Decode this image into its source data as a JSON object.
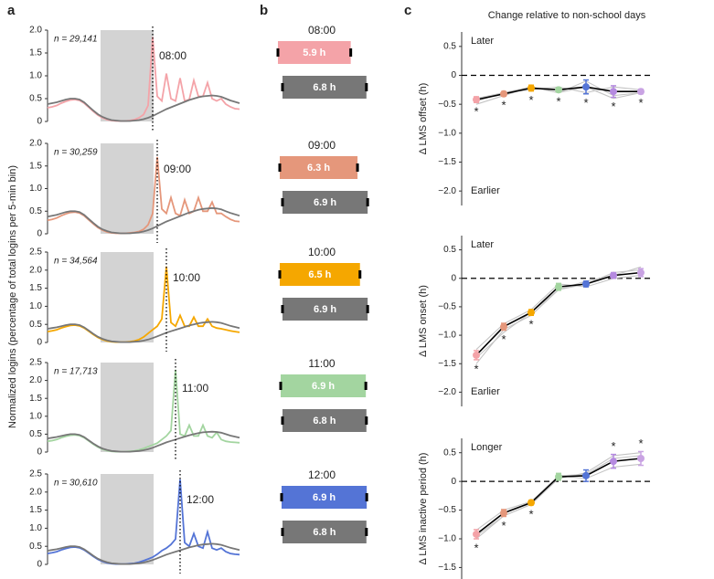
{
  "labels": {
    "a": "a",
    "b": "b",
    "c": "c"
  },
  "a_ylabel": "Normalized logins (percentage of total logins per 5-min bin)",
  "c_title": "Change relative to non-school days",
  "chart_data": [
    {
      "type": "line",
      "title": "08:00",
      "annotation": "n = 29,141",
      "ylim": [
        0,
        2
      ],
      "yticks": [
        0,
        0.5,
        {
          "value": 1,
          "label": "1.0"
        },
        1.5,
        {
          "value": 2,
          "label": "2.0"
        }
      ],
      "series": [
        {
          "color": "#f4a3a8",
          "values": [
            0.3,
            0.32,
            0.35,
            0.4,
            0.44,
            0.47,
            0.48,
            0.46,
            0.4,
            0.31,
            0.22,
            0.14,
            0.08,
            0.04,
            0.02,
            0.01,
            0.01,
            0.01,
            0.02,
            0.04,
            0.08,
            0.15,
            0.35,
            1.85,
            0.55,
            0.45,
            1.05,
            0.5,
            0.45,
            0.95,
            0.45,
            0.48,
            0.9,
            0.55,
            0.55,
            0.85,
            0.5,
            0.45,
            0.5,
            0.38,
            0.32,
            0.28,
            0.27
          ]
        },
        {
          "color": "#777777",
          "values": [
            0.38,
            0.4,
            0.42,
            0.45,
            0.48,
            0.5,
            0.5,
            0.48,
            0.42,
            0.33,
            0.24,
            0.16,
            0.1,
            0.06,
            0.03,
            0.02,
            0.01,
            0.01,
            0.01,
            0.02,
            0.03,
            0.05,
            0.08,
            0.12,
            0.17,
            0.22,
            0.27,
            0.31,
            0.35,
            0.39,
            0.43,
            0.47,
            0.5,
            0.53,
            0.55,
            0.56,
            0.57,
            0.56,
            0.54,
            0.5,
            0.46,
            0.43,
            0.4
          ]
        }
      ]
    },
    {
      "type": "line",
      "title": "09:00",
      "annotation": "n = 30,259",
      "ylim": [
        0,
        2
      ],
      "yticks": [
        0,
        0.5,
        {
          "value": 1,
          "label": "1.0"
        },
        1.5,
        {
          "value": 2,
          "label": "2.0"
        }
      ],
      "series": [
        {
          "color": "#e5977b",
          "values": [
            0.3,
            0.32,
            0.35,
            0.4,
            0.44,
            0.47,
            0.48,
            0.46,
            0.4,
            0.31,
            0.22,
            0.14,
            0.08,
            0.04,
            0.02,
            0.01,
            0.01,
            0.01,
            0.02,
            0.03,
            0.05,
            0.1,
            0.2,
            0.45,
            1.7,
            0.55,
            0.45,
            0.8,
            0.45,
            0.4,
            0.75,
            0.45,
            0.5,
            0.8,
            0.5,
            0.5,
            0.7,
            0.45,
            0.45,
            0.38,
            0.32,
            0.28,
            0.27
          ]
        },
        {
          "color": "#777777",
          "values": [
            0.38,
            0.4,
            0.42,
            0.45,
            0.48,
            0.5,
            0.5,
            0.48,
            0.42,
            0.33,
            0.24,
            0.16,
            0.1,
            0.06,
            0.03,
            0.02,
            0.01,
            0.01,
            0.01,
            0.02,
            0.03,
            0.05,
            0.08,
            0.12,
            0.17,
            0.22,
            0.27,
            0.31,
            0.35,
            0.39,
            0.43,
            0.47,
            0.5,
            0.53,
            0.55,
            0.56,
            0.57,
            0.56,
            0.54,
            0.5,
            0.46,
            0.43,
            0.4
          ]
        }
      ]
    },
    {
      "type": "line",
      "title": "10:00",
      "annotation": "n = 34,564",
      "ylim": [
        0,
        2.5
      ],
      "yticks": [
        0,
        0.5,
        {
          "value": 1,
          "label": "1.0"
        },
        1.5,
        {
          "value": 2,
          "label": "2.0"
        },
        2.5
      ],
      "series": [
        {
          "color": "#f5a700",
          "values": [
            0.3,
            0.32,
            0.35,
            0.4,
            0.44,
            0.47,
            0.48,
            0.46,
            0.4,
            0.31,
            0.22,
            0.14,
            0.08,
            0.04,
            0.02,
            0.01,
            0.01,
            0.01,
            0.02,
            0.04,
            0.08,
            0.15,
            0.25,
            0.35,
            0.45,
            0.65,
            2.1,
            0.55,
            0.45,
            0.75,
            0.45,
            0.45,
            0.7,
            0.45,
            0.45,
            0.65,
            0.45,
            0.4,
            0.38,
            0.35,
            0.32,
            0.3,
            0.28
          ]
        },
        {
          "color": "#777777",
          "values": [
            0.38,
            0.4,
            0.42,
            0.45,
            0.48,
            0.5,
            0.5,
            0.48,
            0.42,
            0.33,
            0.24,
            0.16,
            0.1,
            0.06,
            0.03,
            0.02,
            0.01,
            0.01,
            0.01,
            0.02,
            0.03,
            0.05,
            0.08,
            0.12,
            0.17,
            0.22,
            0.27,
            0.31,
            0.35,
            0.39,
            0.43,
            0.47,
            0.5,
            0.53,
            0.55,
            0.56,
            0.57,
            0.56,
            0.54,
            0.5,
            0.46,
            0.43,
            0.4
          ]
        }
      ]
    },
    {
      "type": "line",
      "title": "11:00",
      "annotation": "n = 17,713",
      "ylim": [
        0,
        2.5
      ],
      "yticks": [
        0,
        0.5,
        {
          "value": 1,
          "label": "1.0"
        },
        1.5,
        {
          "value": 2,
          "label": "2.0"
        },
        2.5
      ],
      "series": [
        {
          "color": "#a3d5a0",
          "values": [
            0.3,
            0.32,
            0.35,
            0.4,
            0.44,
            0.47,
            0.48,
            0.46,
            0.4,
            0.31,
            0.22,
            0.14,
            0.08,
            0.04,
            0.02,
            0.01,
            0.01,
            0.01,
            0.02,
            0.03,
            0.06,
            0.1,
            0.15,
            0.2,
            0.25,
            0.35,
            0.45,
            0.6,
            2.3,
            0.5,
            0.45,
            0.75,
            0.45,
            0.45,
            0.75,
            0.45,
            0.4,
            0.55,
            0.35,
            0.3,
            0.28,
            0.27,
            0.26
          ]
        },
        {
          "color": "#777777",
          "values": [
            0.38,
            0.4,
            0.42,
            0.45,
            0.48,
            0.5,
            0.5,
            0.48,
            0.42,
            0.33,
            0.24,
            0.16,
            0.1,
            0.06,
            0.03,
            0.02,
            0.01,
            0.01,
            0.01,
            0.02,
            0.03,
            0.05,
            0.08,
            0.12,
            0.17,
            0.22,
            0.27,
            0.31,
            0.35,
            0.39,
            0.43,
            0.47,
            0.5,
            0.53,
            0.55,
            0.56,
            0.57,
            0.56,
            0.54,
            0.5,
            0.46,
            0.43,
            0.4
          ]
        }
      ]
    },
    {
      "type": "line",
      "title": "12:00",
      "annotation": "n = 30,610",
      "ylim": [
        0,
        2.5
      ],
      "yticks": [
        0,
        0.5,
        {
          "value": 1,
          "label": "1.0"
        },
        1.5,
        {
          "value": 2,
          "label": "2.0"
        },
        2.5
      ],
      "series": [
        {
          "color": "#5474d6",
          "values": [
            0.3,
            0.32,
            0.35,
            0.4,
            0.44,
            0.47,
            0.48,
            0.46,
            0.4,
            0.31,
            0.22,
            0.14,
            0.08,
            0.04,
            0.02,
            0.01,
            0.01,
            0.01,
            0.02,
            0.03,
            0.06,
            0.1,
            0.15,
            0.2,
            0.28,
            0.38,
            0.45,
            0.55,
            0.7,
            2.35,
            0.6,
            0.5,
            0.85,
            0.5,
            0.45,
            0.9,
            0.45,
            0.4,
            0.45,
            0.35,
            0.3,
            0.28,
            0.27
          ]
        },
        {
          "color": "#777777",
          "values": [
            0.38,
            0.4,
            0.42,
            0.45,
            0.48,
            0.5,
            0.5,
            0.48,
            0.42,
            0.33,
            0.24,
            0.16,
            0.1,
            0.06,
            0.03,
            0.02,
            0.01,
            0.01,
            0.01,
            0.02,
            0.03,
            0.05,
            0.08,
            0.12,
            0.17,
            0.22,
            0.27,
            0.31,
            0.35,
            0.39,
            0.43,
            0.47,
            0.5,
            0.53,
            0.55,
            0.56,
            0.57,
            0.56,
            0.54,
            0.5,
            0.46,
            0.43,
            0.4
          ]
        }
      ]
    },
    {
      "type": "bar",
      "title": "08:00",
      "series": [
        {
          "color": "#f4a3a8",
          "values": [
            5.9
          ],
          "value_labels": [
            "5.9 h"
          ]
        },
        {
          "color": "#777777",
          "values": [
            6.8
          ],
          "value_labels": [
            "6.8 h"
          ]
        }
      ]
    },
    {
      "type": "bar",
      "title": "09:00",
      "series": [
        {
          "color": "#e5977b",
          "values": [
            6.3
          ],
          "value_labels": [
            "6.3 h"
          ]
        },
        {
          "color": "#777777",
          "values": [
            6.9
          ],
          "value_labels": [
            "6.9 h"
          ]
        }
      ]
    },
    {
      "type": "bar",
      "title": "10:00",
      "series": [
        {
          "color": "#f5a700",
          "values": [
            6.5
          ],
          "value_labels": [
            "6.5 h"
          ]
        },
        {
          "color": "#777777",
          "values": [
            6.9
          ],
          "value_labels": [
            "6.9 h"
          ]
        }
      ]
    },
    {
      "type": "bar",
      "title": "11:00",
      "series": [
        {
          "color": "#a3d5a0",
          "values": [
            6.9
          ],
          "value_labels": [
            "6.9 h"
          ]
        },
        {
          "color": "#777777",
          "values": [
            6.8
          ],
          "value_labels": [
            "6.8 h"
          ]
        }
      ]
    },
    {
      "type": "bar",
      "title": "12:00",
      "series": [
        {
          "color": "#5474d6",
          "values": [
            6.9
          ],
          "value_labels": [
            "6.9 h"
          ]
        },
        {
          "color": "#777777",
          "values": [
            6.8
          ],
          "value_labels": [
            "6.8 h"
          ]
        }
      ]
    },
    {
      "type": "errorline",
      "ylabel": "Δ LMS offset (h)",
      "annotations": [
        "Later",
        "Earlier"
      ],
      "ylim": [
        -2.25,
        0.75
      ],
      "yticks": [
        0.5,
        0,
        {
          "value": -0.5,
          "label": "−0.5"
        },
        {
          "value": -1,
          "label": "−1.0"
        },
        {
          "value": -1.5,
          "label": "−1.5"
        },
        {
          "value": -2,
          "label": "−2.0"
        }
      ],
      "categories": [
        null,
        null,
        null,
        null,
        null,
        null,
        null
      ],
      "point_colors": [
        "#f4a3a8",
        "#e5977b",
        "#f5a700",
        "#a3d5a0",
        "#5474d6",
        "#b58ae0",
        "#c9a3e3"
      ],
      "series": [
        {
          "color": "#000000",
          "values": [
            -0.42,
            -0.32,
            -0.22,
            -0.25,
            -0.2,
            -0.28,
            -0.28
          ]
        },
        {
          "color": "#c4c4c4",
          "values": [
            -0.5,
            -0.35,
            -0.2,
            -0.3,
            -0.1,
            -0.35,
            -0.3
          ]
        },
        {
          "color": "#c4c4c4",
          "values": [
            -0.4,
            -0.3,
            -0.25,
            -0.2,
            -0.3,
            -0.2,
            -0.25
          ]
        },
        {
          "color": "#c4c4c4",
          "values": [
            -0.45,
            -0.3,
            -0.2,
            -0.3,
            -0.2,
            -0.4,
            -0.3
          ]
        }
      ],
      "errors": [
        0.05,
        0.04,
        0.05,
        0.04,
        0.12,
        0.1,
        0.04
      ],
      "markers": [
        "*",
        "*",
        "*",
        "*",
        "*",
        "*",
        "*"
      ]
    },
    {
      "type": "errorline",
      "ylabel": "Δ LMS onset (h)",
      "annotations": [
        "Later",
        "Earlier"
      ],
      "ylim": [
        -2.25,
        0.75
      ],
      "yticks": [
        0.5,
        0,
        {
          "value": -0.5,
          "label": "−0.5"
        },
        {
          "value": -1,
          "label": "−1.0"
        },
        {
          "value": -1.5,
          "label": "−1.5"
        },
        {
          "value": -2,
          "label": "−2.0"
        }
      ],
      "categories": [
        null,
        null,
        null,
        null,
        null,
        null,
        null
      ],
      "point_colors": [
        "#f4a3a8",
        "#e5977b",
        "#f5a700",
        "#a3d5a0",
        "#5474d6",
        "#b58ae0",
        "#c9a3e3"
      ],
      "series": [
        {
          "color": "#000000",
          "values": [
            -1.35,
            -0.85,
            -0.6,
            -0.15,
            -0.1,
            0.05,
            0.1
          ]
        },
        {
          "color": "#c4c4c4",
          "values": [
            -1.5,
            -0.9,
            -0.65,
            -0.2,
            -0.1,
            0.1,
            0.15
          ]
        },
        {
          "color": "#c4c4c4",
          "values": [
            -1.25,
            -0.8,
            -0.55,
            -0.1,
            -0.15,
            0.0,
            0.05
          ]
        },
        {
          "color": "#c4c4c4",
          "values": [
            -1.4,
            -0.95,
            -0.6,
            -0.2,
            -0.05,
            0.05,
            0.2
          ]
        }
      ],
      "errors": [
        0.08,
        0.06,
        0.05,
        0.06,
        0.05,
        0.05,
        0.07
      ],
      "markers": [
        "*",
        "*",
        "*",
        null,
        null,
        null,
        null
      ]
    },
    {
      "type": "errorline",
      "ylabel": "Δ LMS inactive period (h)",
      "annotations": [
        "Longer"
      ],
      "ylim": [
        -1.7,
        0.75
      ],
      "yticks": [
        0.5,
        0,
        {
          "value": -0.5,
          "label": "−0.5"
        },
        {
          "value": -1,
          "label": "−1.0"
        },
        {
          "value": -1.5,
          "label": "−1.5"
        }
      ],
      "categories": [
        null,
        null,
        null,
        null,
        null,
        null,
        null
      ],
      "point_colors": [
        "#f4a3a8",
        "#e5977b",
        "#f5a700",
        "#a3d5a0",
        "#5474d6",
        "#b58ae0",
        "#c9a3e3"
      ],
      "series": [
        {
          "color": "#000000",
          "values": [
            -0.92,
            -0.55,
            -0.37,
            0.08,
            0.1,
            0.35,
            0.4
          ]
        },
        {
          "color": "#c4c4c4",
          "values": [
            -1.0,
            -0.6,
            -0.4,
            0.05,
            0.15,
            0.45,
            0.5
          ]
        },
        {
          "color": "#c4c4c4",
          "values": [
            -0.85,
            -0.5,
            -0.35,
            0.1,
            0.05,
            0.25,
            0.3
          ]
        },
        {
          "color": "#c4c4c4",
          "values": [
            -0.95,
            -0.6,
            -0.4,
            0.1,
            0.12,
            0.4,
            0.45
          ]
        }
      ],
      "errors": [
        0.08,
        0.06,
        0.04,
        0.06,
        0.1,
        0.12,
        0.12
      ],
      "markers": [
        "*",
        "*",
        "*",
        null,
        null,
        "*",
        "*"
      ]
    }
  ]
}
